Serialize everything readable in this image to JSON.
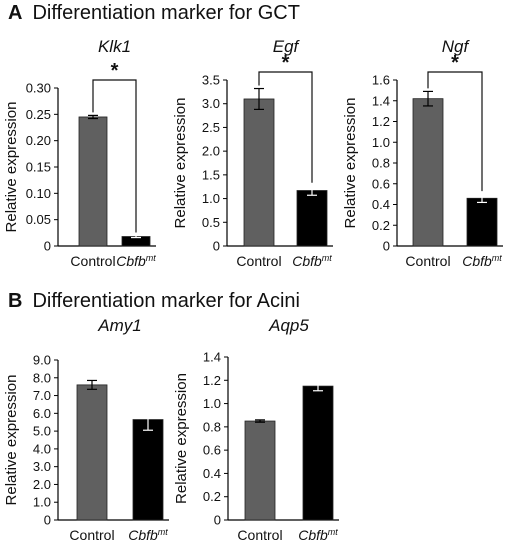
{
  "sections": [
    {
      "letter": "A",
      "title": "Differentiation marker for GCT"
    },
    {
      "letter": "B",
      "title": "Differentiation marker for Acini"
    }
  ],
  "colors": {
    "control": "#606060",
    "mutant": "#000000",
    "axis": "#000000"
  },
  "chart_data": [
    {
      "type": "bar",
      "title": "Klk1",
      "ylabel": "Relative expression",
      "categories": [
        "Control",
        "Cbfb"
      ],
      "category_superscripts": [
        "",
        "mt"
      ],
      "values": [
        0.245,
        0.018
      ],
      "errors": [
        0.003,
        0.002
      ],
      "ylim": [
        0,
        0.3
      ],
      "yticks": [
        0,
        0.05,
        0.1,
        0.15,
        0.2,
        0.25,
        0.3
      ],
      "yticklabels": [
        "0",
        "0.05",
        "0.10",
        "0.15",
        "0.20",
        "0.25",
        "0.30"
      ],
      "significance": "*",
      "grid": false,
      "legend": false
    },
    {
      "type": "bar",
      "title": "Egf",
      "ylabel": "Relative expression",
      "categories": [
        "Control",
        "Cbfb"
      ],
      "category_superscripts": [
        "",
        "mt"
      ],
      "values": [
        3.1,
        1.17
      ],
      "errors": [
        0.22,
        0.1
      ],
      "ylim": [
        0,
        3.5
      ],
      "yticks": [
        0,
        0.5,
        1,
        1.5,
        2,
        2.5,
        3,
        3.5
      ],
      "yticklabels": [
        "0",
        "0.5",
        "1.0",
        "1.5",
        "2.0",
        "2.5",
        "3.0",
        "3.5"
      ],
      "significance": "*",
      "grid": false,
      "legend": false
    },
    {
      "type": "bar",
      "title": "Ngf",
      "ylabel": "Relative expression",
      "categories": [
        "Control",
        "Cbfb"
      ],
      "category_superscripts": [
        "",
        "mt"
      ],
      "values": [
        1.42,
        0.46
      ],
      "errors": [
        0.07,
        0.04
      ],
      "ylim": [
        0,
        1.6
      ],
      "yticks": [
        0,
        0.2,
        0.4,
        0.6,
        0.8,
        1,
        1.2,
        1.4,
        1.6
      ],
      "yticklabels": [
        "0",
        "0.2",
        "0.4",
        "0.6",
        "0.8",
        "1.0",
        "1.2",
        "1.4",
        "1.6"
      ],
      "significance": "*",
      "grid": false,
      "legend": false
    },
    {
      "type": "bar",
      "title": "Amy1",
      "ylabel": "Relative expression",
      "categories": [
        "Control",
        "Cbfb"
      ],
      "category_superscripts": [
        "",
        "mt"
      ],
      "values": [
        7.6,
        5.65
      ],
      "errors": [
        0.25,
        0.6
      ],
      "ylim": [
        0,
        9
      ],
      "yticks": [
        0,
        1,
        2,
        3,
        4,
        5,
        6,
        7,
        8,
        9
      ],
      "yticklabels": [
        "0",
        "1.0",
        "2.0",
        "3.0",
        "4.0",
        "5.0",
        "6.0",
        "7.0",
        "8.0",
        "9.0"
      ],
      "significance": "",
      "grid": false,
      "legend": false
    },
    {
      "type": "bar",
      "title": "Aqp5",
      "ylabel": "Relative expression",
      "categories": [
        "Control",
        "Cbfb"
      ],
      "category_superscripts": [
        "",
        "mt"
      ],
      "values": [
        0.85,
        1.15
      ],
      "errors": [
        0.01,
        0.04
      ],
      "ylim": [
        0,
        1.4
      ],
      "yticks": [
        0,
        0.2,
        0.4,
        0.6,
        0.8,
        1,
        1.2,
        1.4
      ],
      "yticklabels": [
        "0",
        "0.2",
        "0.4",
        "0.6",
        "0.8",
        "1.0",
        "1.2",
        "1.4"
      ],
      "significance": "",
      "grid": false,
      "legend": false
    }
  ]
}
